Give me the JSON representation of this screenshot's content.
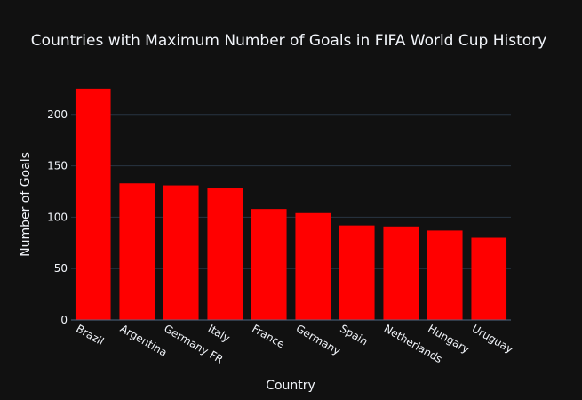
{
  "chart_data": {
    "type": "bar",
    "title": "Countries with Maximum Number of Goals in FIFA World Cup History",
    "xlabel": "Country",
    "ylabel": "Number of Goals",
    "categories": [
      "Brazil",
      "Argentina",
      "Germany FR",
      "Italy",
      "France",
      "Germany",
      "Spain",
      "Netherlands",
      "Hungary",
      "Uruguay"
    ],
    "values": [
      225,
      133,
      131,
      128,
      108,
      104,
      92,
      91,
      87,
      80
    ],
    "ylim": [
      0,
      237
    ],
    "yticks": [
      0,
      50,
      100,
      150,
      200
    ],
    "grid": true,
    "bar_color": "#ff0000",
    "background": "#111111",
    "grid_color": "#283442",
    "text_color": "#f2f5fa"
  }
}
